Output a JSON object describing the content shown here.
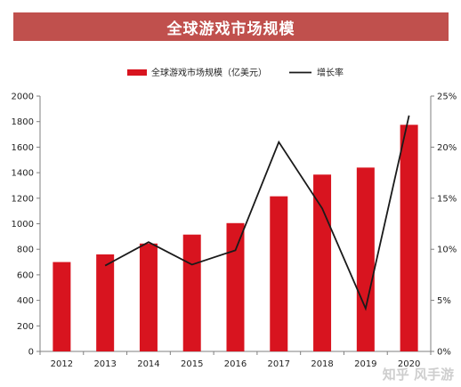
{
  "chart_data": {
    "type": "bar+line",
    "title": "全球游戏市场规模",
    "categories": [
      "2012",
      "2013",
      "2014",
      "2015",
      "2016",
      "2017",
      "2018",
      "2019",
      "2020"
    ],
    "series": [
      {
        "name": "全球游戏市场规模（亿美元）",
        "type": "bar",
        "axis": "left",
        "color": "#d8141f",
        "values": [
          700,
          760,
          845,
          915,
          1005,
          1215,
          1385,
          1440,
          1775
        ]
      },
      {
        "name": "增长率",
        "type": "line",
        "axis": "right",
        "color": "#1a1a1a",
        "values": [
          null,
          8.4,
          10.7,
          8.5,
          9.9,
          20.5,
          14.0,
          4.2,
          23.1
        ]
      }
    ],
    "y_left": {
      "min": 0,
      "max": 2000,
      "step": 200,
      "ticks": [
        "0",
        "200",
        "400",
        "600",
        "800",
        "1000",
        "1200",
        "1400",
        "1600",
        "1800",
        "2000"
      ]
    },
    "y_right": {
      "min": 0,
      "max": 25,
      "step": 5,
      "ticks": [
        "0%",
        "5%",
        "10%",
        "15%",
        "20%",
        "25%"
      ]
    },
    "grid": false,
    "legend_position": "top"
  },
  "watermark": "知乎 风手游"
}
